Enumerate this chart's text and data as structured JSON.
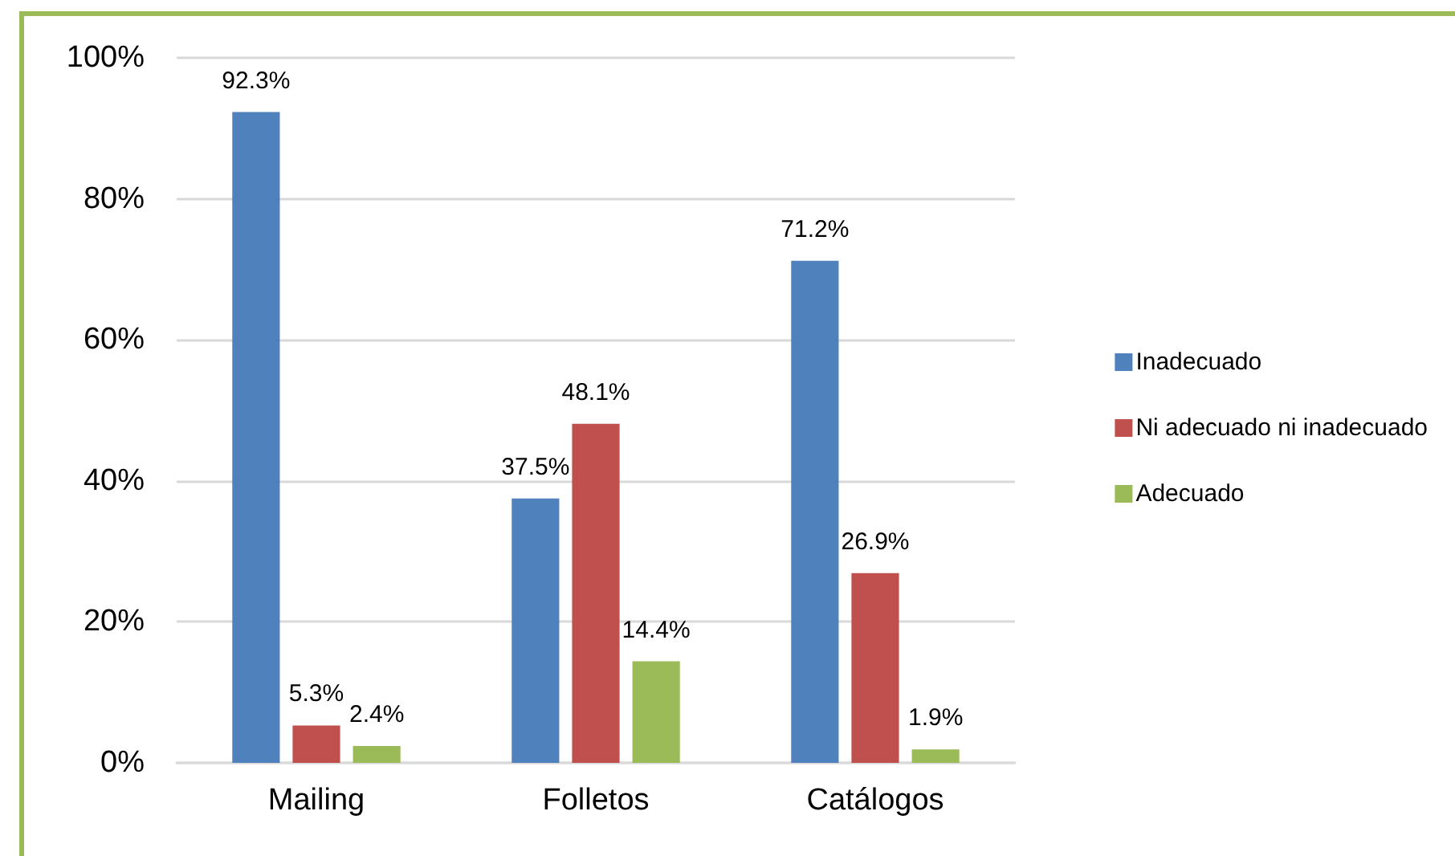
{
  "chart_data": {
    "type": "bar",
    "categories": [
      "Mailing",
      "Folletos",
      "Catálogos"
    ],
    "series": [
      {
        "name": "Inadecuado",
        "color": "#4f81bd",
        "values": [
          92.3,
          37.5,
          71.2
        ],
        "value_labels": [
          "92.3%",
          "37.5%",
          "71.2%"
        ]
      },
      {
        "name": "Ni adecuado ni inadecuado",
        "color": "#c0504d",
        "values": [
          5.3,
          48.1,
          26.9
        ],
        "value_labels": [
          "5.3%",
          "48.1%",
          "26.9%"
        ]
      },
      {
        "name": "Adecuado",
        "color": "#9bbb59",
        "values": [
          2.4,
          14.4,
          1.9
        ],
        "value_labels": [
          "2.4%",
          "14.4%",
          "1.9%"
        ]
      }
    ],
    "ylim": [
      0,
      100
    ],
    "yticks": [
      {
        "value": 0,
        "label": "0%"
      },
      {
        "value": 20,
        "label": "20%"
      },
      {
        "value": 40,
        "label": "40%"
      },
      {
        "value": 60,
        "label": "60%"
      },
      {
        "value": 80,
        "label": "80%"
      },
      {
        "value": 100,
        "label": "100%"
      }
    ],
    "grid": "y",
    "legend": "right"
  }
}
